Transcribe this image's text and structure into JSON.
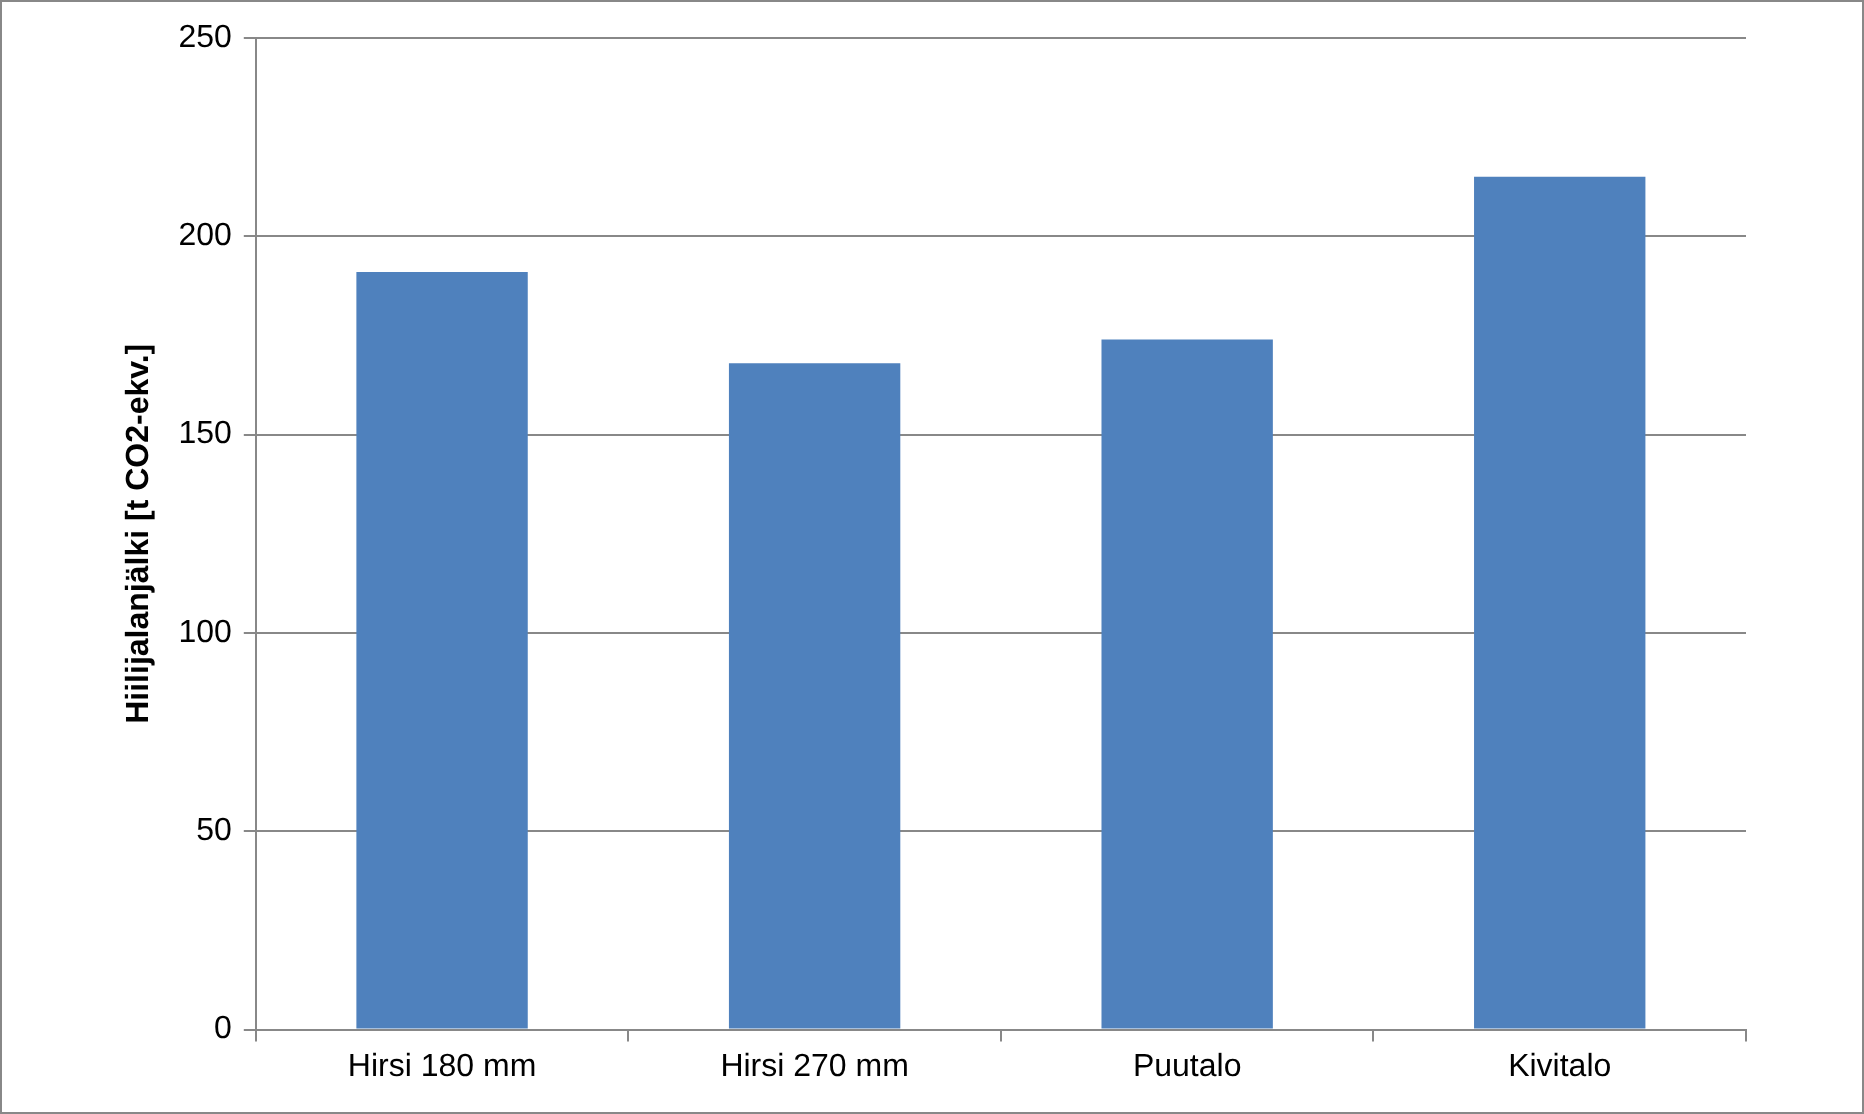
{
  "chart_data": {
    "type": "bar",
    "ylabel": "Hiilijalanjälki [t CO2-ekv.]",
    "categories": [
      "Hirsi 180 mm",
      "Hirsi 270 mm",
      "Puutalo",
      "Kivitalo"
    ],
    "values": [
      191,
      168,
      174,
      215
    ],
    "color": "#4f81bd",
    "ylim": [
      0,
      250
    ],
    "yticks": [
      0,
      50,
      100,
      150,
      200,
      250
    ],
    "grid": "y",
    "legend": false
  }
}
